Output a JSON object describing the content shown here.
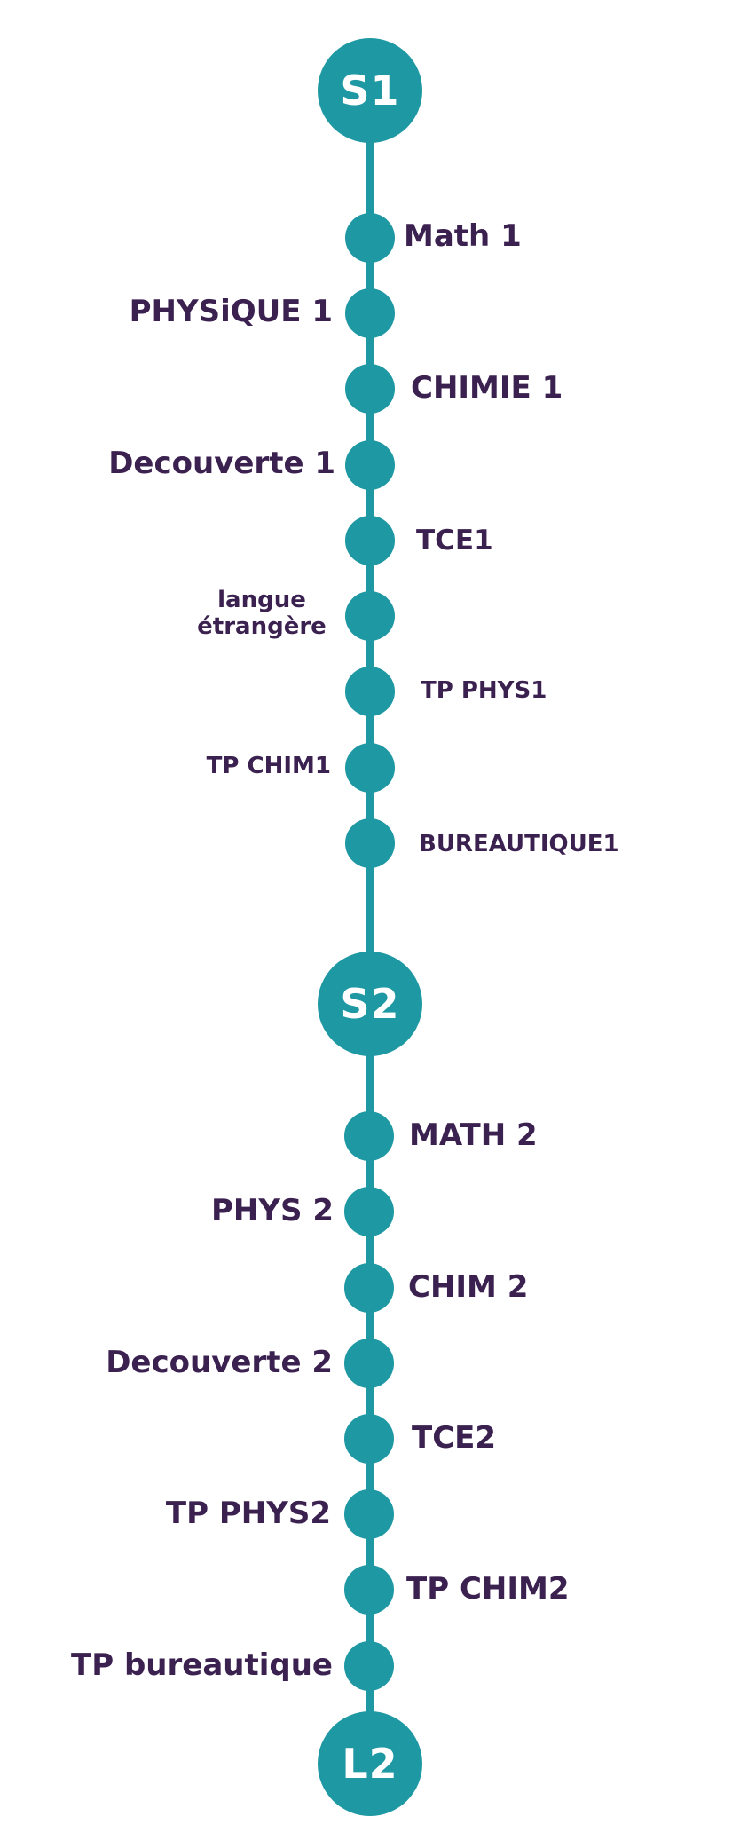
{
  "milestones": {
    "s1": "S1",
    "s2": "S2",
    "l2": "L2"
  },
  "semester1": [
    {
      "label": "Math 1",
      "side": "right"
    },
    {
      "label": "PHYSiQUE 1",
      "side": "left"
    },
    {
      "label": "CHIMIE 1",
      "side": "right"
    },
    {
      "label": "Decouverte 1",
      "side": "left"
    },
    {
      "label": "TCE1",
      "side": "right"
    },
    {
      "label": "langue étrangère",
      "side": "left"
    },
    {
      "label": "TP PHYS1",
      "side": "right"
    },
    {
      "label": "TP CHIM1",
      "side": "left"
    },
    {
      "label": "BUREAUTIQUE1",
      "side": "right"
    }
  ],
  "semester2": [
    {
      "label": "MATH 2",
      "side": "right"
    },
    {
      "label": "PHYS 2",
      "side": "left"
    },
    {
      "label": "CHIM 2",
      "side": "right"
    },
    {
      "label": "Decouverte 2",
      "side": "left"
    },
    {
      "label": "TCE2",
      "side": "right"
    },
    {
      "label": "TP PHYS2",
      "side": "left"
    },
    {
      "label": "TP CHIM2",
      "side": "right"
    },
    {
      "label": "TP bureautique",
      "side": "left"
    }
  ],
  "colors": {
    "teal": "#1e98a3",
    "text": "#3b2150",
    "milestone_text": "#ffffff"
  }
}
